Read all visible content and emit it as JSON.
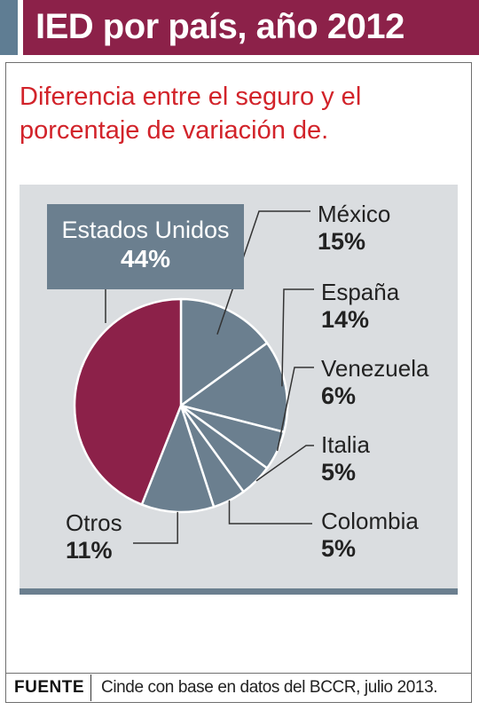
{
  "header": {
    "title": "IED por país, año 2012"
  },
  "subtitle": "Diferencia entre el seguro y el porcentaje de variación de.",
  "chart_data": {
    "type": "pie",
    "slices": [
      {
        "label": "Estados Unidos",
        "value": 44,
        "display": "44%",
        "color": "#8c2149"
      },
      {
        "label": "México",
        "value": 15,
        "display": "15%",
        "color": "#6b7f8f"
      },
      {
        "label": "España",
        "value": 14,
        "display": "14%",
        "color": "#6b7f8f"
      },
      {
        "label": "Venezuela",
        "value": 6,
        "display": "6%",
        "color": "#6b7f8f"
      },
      {
        "label": "Italia",
        "value": 5,
        "display": "5%",
        "color": "#6b7f8f"
      },
      {
        "label": "Colombia",
        "value": 5,
        "display": "5%",
        "color": "#6b7f8f"
      },
      {
        "label": "Otros",
        "value": 11,
        "display": "11%",
        "color": "#6b7f8f"
      }
    ]
  },
  "source": {
    "key": "FUENTE",
    "text": "Cinde con base en datos del BCCR, julio 2013."
  },
  "colors": {
    "accent": "#8c2149",
    "slate": "#6b7f8f",
    "subtitle": "#d2232a",
    "panel": "#dadde0"
  }
}
